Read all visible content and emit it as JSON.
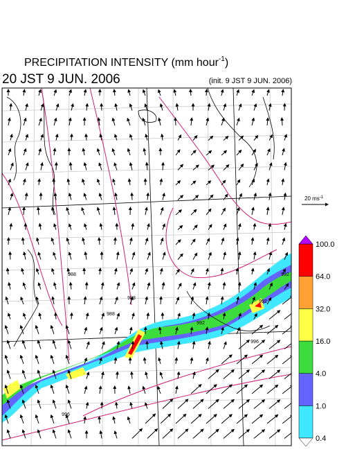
{
  "title": {
    "main": "PRECIPITATION INTENSITY (mm hour",
    "exponent": "-1",
    "close": ")"
  },
  "valid_time": "20 JST 9 JUN. 2006",
  "init_time": "(init. 9 JST 9 JUN. 2006)",
  "reference_vector": {
    "label": "20 ms",
    "exponent": "-1"
  },
  "contour_labels": [
    "992",
    "992",
    "992",
    "996",
    "988",
    "988",
    "988",
    "996"
  ],
  "colorbar": {
    "levels": [
      {
        "value": 0.4,
        "label": "0.4"
      },
      {
        "value": 1,
        "label": "1.0"
      },
      {
        "value": 4,
        "label": "4.0"
      },
      {
        "value": 16,
        "label": "16.0"
      },
      {
        "value": 32,
        "label": "32.0"
      },
      {
        "value": 64,
        "label": "64.0"
      },
      {
        "value": 100,
        "label": "100.0"
      }
    ],
    "colors": [
      "#40e8ff",
      "#6464ff",
      "#3cdc3c",
      "#ffff46",
      "#ffa032",
      "#ff0000"
    ],
    "over_color": "#b400ff",
    "under_color": "#ffffff"
  }
}
